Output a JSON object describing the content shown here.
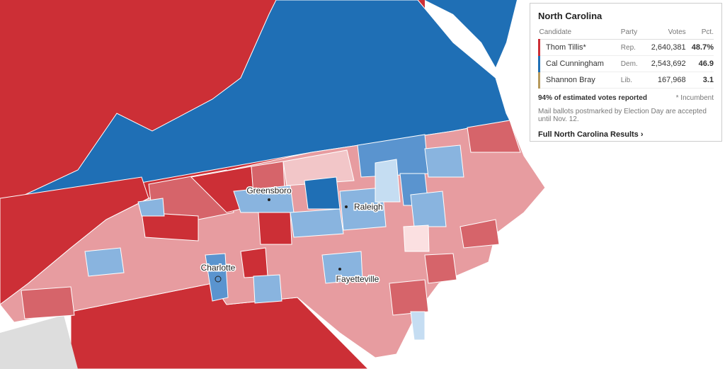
{
  "map": {
    "cities": [
      {
        "label": "Greensboro"
      },
      {
        "label": "Raleigh"
      },
      {
        "label": "Charlotte"
      },
      {
        "label": "Fayetteville"
      }
    ]
  },
  "results": {
    "title": "North Carolina",
    "columns": [
      "Candidate",
      "Party",
      "Votes",
      "Pct."
    ],
    "rows": [
      [
        "Thom Tillis*",
        "Rep.",
        "2,640,381",
        "48.7%"
      ],
      [
        "Cal Cunningham",
        "Dem.",
        "2,543,692",
        "46.9"
      ],
      [
        "Shannon Bray",
        "Lib.",
        "167,968",
        "3.1"
      ]
    ],
    "reported": "94% of estimated votes reported",
    "incumbent_note": "* Incumbent",
    "note": "Mail ballots postmarked by Election Day are accepted until Nov. 12.",
    "link": "Full North Carolina Results ›"
  }
}
